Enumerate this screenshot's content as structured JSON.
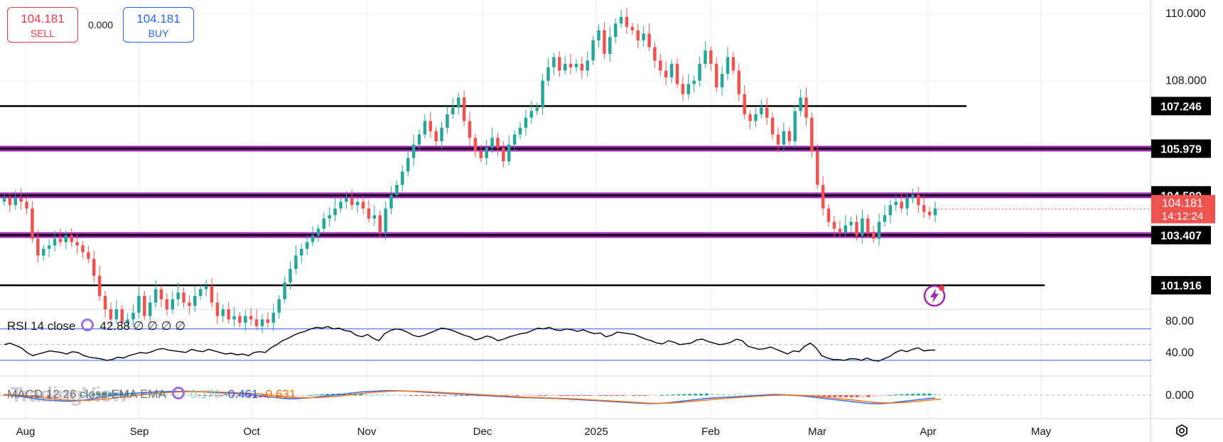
{
  "trade": {
    "sell_price": "104.181",
    "sell_label": "SELL",
    "spread": "0.000",
    "buy_price": "104.181",
    "buy_label": "BUY"
  },
  "indicators": {
    "rsi": {
      "label": "RSI 14 close",
      "value": "42.88",
      "extra": "∅ ∅ ∅ ∅"
    },
    "macd": {
      "label": "MACD 12 26 close EMA EMA",
      "hist": "0.170",
      "macd": "-0.461",
      "signal": "-0.631"
    }
  },
  "watermark": "TradingView",
  "colors": {
    "up": "#26a69a",
    "down": "#ef5350",
    "level": "#9c27b0",
    "rsi_band": "#2962ff",
    "macd_line": "#2962ff",
    "signal_line": "#ff6d00"
  },
  "icons": {
    "settings": "settings-icon",
    "alert": "lightning-alert-icon",
    "indicator_settings": "gear-icon"
  },
  "chart_data": {
    "type": "candlestick",
    "title": "",
    "price_axis_ticks": [
      "110.000",
      "108.000"
    ],
    "price_range": [
      101.2,
      110.4
    ],
    "time_axis_ticks": [
      "Aug",
      "Sep",
      "Oct",
      "Nov",
      "Dec",
      "2025",
      "Feb",
      "Mar",
      "Apr",
      "May"
    ],
    "levels": [
      {
        "value": 107.246,
        "label": "107.246",
        "style": "black"
      },
      {
        "value": 105.979,
        "label": "105.979",
        "style": "purple"
      },
      {
        "value": 104.59,
        "label": "104.590",
        "style": "purple"
      },
      {
        "value": 103.407,
        "label": "103.407",
        "style": "purple"
      },
      {
        "value": 101.916,
        "label": "101.916",
        "style": "black"
      }
    ],
    "current_price": {
      "value": 104.181,
      "label": "104.181",
      "countdown": "14:12:24"
    },
    "closes": [
      104.5,
      104.3,
      104.5,
      104.4,
      104.2,
      103.3,
      102.8,
      103.0,
      103.1,
      103.3,
      103.2,
      103.4,
      103.2,
      103.1,
      102.9,
      102.7,
      102.2,
      101.6,
      101.2,
      100.9,
      101.2,
      100.8,
      100.9,
      101.1,
      101.6,
      101.0,
      101.4,
      101.8,
      101.5,
      101.2,
      101.5,
      101.7,
      101.4,
      101.3,
      101.6,
      101.8,
      101.9,
      101.4,
      101.0,
      101.2,
      100.9,
      101.0,
      100.8,
      101.0,
      100.9,
      100.7,
      100.9,
      100.8,
      101.1,
      101.5,
      102.0,
      102.4,
      102.8,
      103.0,
      103.2,
      103.4,
      103.6,
      103.9,
      104.0,
      104.2,
      104.4,
      104.5,
      104.3,
      104.4,
      104.2,
      103.9,
      104.0,
      103.5,
      104.2,
      104.6,
      104.9,
      105.3,
      105.7,
      106.1,
      106.4,
      106.8,
      106.5,
      106.2,
      106.6,
      107.0,
      107.2,
      107.5,
      106.8,
      106.3,
      105.9,
      105.7,
      106.0,
      106.3,
      106.0,
      105.6,
      106.1,
      106.4,
      106.6,
      106.9,
      107.1,
      107.2,
      108.0,
      108.4,
      108.7,
      108.3,
      108.5,
      108.4,
      108.5,
      108.3,
      108.6,
      109.2,
      109.5,
      108.8,
      109.3,
      109.7,
      109.9,
      109.6,
      109.5,
      109.2,
      109.4,
      109.0,
      108.6,
      108.3,
      108.1,
      108.5,
      107.9,
      107.6,
      107.9,
      108.0,
      108.5,
      108.9,
      108.5,
      107.8,
      108.2,
      108.7,
      108.3,
      107.6,
      107.0,
      106.8,
      107.0,
      107.2,
      106.9,
      106.4,
      106.1,
      106.5,
      106.2,
      107.1,
      107.5,
      106.9,
      105.9,
      104.9,
      104.2,
      103.8,
      103.6,
      103.5,
      103.7,
      103.8,
      103.4,
      103.9,
      103.5,
      103.3,
      103.8,
      104.0,
      104.3,
      104.4,
      104.2,
      104.5,
      104.6,
      104.3,
      104.1,
      104.0,
      104.2
    ]
  },
  "rsi_data": {
    "levels": [
      70,
      50,
      30
    ],
    "ticks": [
      "80.00",
      "40.00"
    ],
    "values": [
      50,
      52,
      49,
      46,
      40,
      36,
      38,
      40,
      42,
      41,
      40,
      38,
      41,
      40,
      36,
      34,
      33,
      32,
      30,
      31,
      34,
      33,
      36,
      38,
      40,
      39,
      41,
      44,
      45,
      43,
      42,
      41,
      40,
      44,
      42,
      41,
      44,
      42,
      40,
      38,
      39,
      37,
      38,
      36,
      40,
      41,
      40,
      46,
      50,
      55,
      58,
      62,
      65,
      67,
      70,
      72,
      71,
      73,
      70,
      71,
      68,
      67,
      62,
      60,
      63,
      58,
      55,
      64,
      68,
      70,
      69,
      66,
      62,
      60,
      62,
      65,
      68,
      71,
      70,
      68,
      65,
      62,
      60,
      56,
      58,
      61,
      59,
      55,
      57,
      60,
      62,
      64,
      65,
      68,
      71,
      70,
      72,
      69,
      68,
      70,
      69,
      67,
      69,
      66,
      64,
      65,
      60,
      62,
      66,
      65,
      64,
      63,
      60,
      57,
      55,
      52,
      51,
      55,
      53,
      50,
      51,
      52,
      56,
      57,
      54,
      52,
      50,
      51,
      53,
      57,
      55,
      48,
      46,
      44,
      45,
      47,
      44,
      41,
      38,
      42,
      41,
      48,
      52,
      46,
      36,
      33,
      31,
      31,
      30,
      32,
      32,
      30,
      33,
      30,
      29,
      32,
      35,
      40,
      43,
      41,
      44,
      46,
      42,
      43,
      43
    ]
  },
  "macd_data": {
    "ticks": [
      "0.000"
    ],
    "macd": [
      0.05,
      0.0,
      -0.1,
      -0.2,
      -0.35,
      -0.5,
      -0.6,
      -0.7,
      -0.8,
      -0.85,
      -0.9,
      -0.95,
      -0.95,
      -0.9,
      -0.8,
      -0.7,
      -0.55,
      -0.4,
      -0.25,
      -0.1,
      0.0,
      0.1,
      0.2,
      0.3,
      0.35,
      0.4,
      0.45,
      0.5,
      0.55,
      0.55,
      0.6,
      0.6,
      0.6,
      0.62,
      0.6,
      0.55,
      0.5,
      0.45,
      0.4,
      0.35,
      0.35,
      0.3,
      0.25,
      0.2,
      0.1,
      0.0,
      -0.1,
      -0.2,
      -0.3,
      -0.4,
      -0.5,
      -0.55,
      -0.55,
      -0.5,
      -0.45,
      -0.4,
      -0.3,
      -0.2,
      -0.1,
      0.0,
      0.1,
      0.2,
      0.3,
      0.4,
      0.5,
      0.55,
      0.6,
      0.65,
      0.7,
      0.72,
      0.7,
      0.68,
      0.65,
      0.6,
      0.55,
      0.5,
      0.45,
      0.4,
      0.35,
      0.3,
      0.25,
      0.2,
      0.15,
      0.1,
      0.05,
      0.0,
      -0.05,
      -0.1,
      -0.15,
      -0.2,
      -0.25,
      -0.3,
      -0.35,
      -0.38,
      -0.4,
      -0.42,
      -0.45,
      -0.48,
      -0.5,
      -0.52,
      -0.55,
      -0.6,
      -0.65,
      -0.7,
      -0.75,
      -0.8,
      -0.85,
      -0.9,
      -0.95,
      -1.0,
      -1.05,
      -1.1,
      -1.15,
      -1.2,
      -1.25,
      -1.3,
      -1.32,
      -1.3,
      -1.25,
      -1.2,
      -1.1,
      -1.0,
      -0.9,
      -0.8,
      -0.7,
      -0.6,
      -0.5,
      -0.45,
      -0.4,
      -0.35,
      -0.3,
      -0.25,
      -0.2,
      -0.15,
      -0.1,
      -0.05,
      0.0,
      0.05,
      0.1,
      0.1,
      0.05,
      0.0,
      -0.05,
      -0.1,
      -0.2,
      -0.3,
      -0.4,
      -0.5,
      -0.6,
      -0.7,
      -0.8,
      -0.9,
      -1.0,
      -1.1,
      -1.2,
      -1.3,
      -1.35,
      -1.35,
      -1.3,
      -1.2,
      -1.1,
      -1.0,
      -0.9,
      -0.8,
      -0.7,
      -0.6,
      -0.5,
      -0.46
    ],
    "signal": [
      0.1,
      0.08,
      0.05,
      0.0,
      -0.1,
      -0.2,
      -0.3,
      -0.4,
      -0.5,
      -0.6,
      -0.7,
      -0.75,
      -0.8,
      -0.82,
      -0.82,
      -0.8,
      -0.75,
      -0.7,
      -0.6,
      -0.5,
      -0.4,
      -0.3,
      -0.2,
      -0.1,
      0.0,
      0.1,
      0.2,
      0.3,
      0.35,
      0.4,
      0.45,
      0.5,
      0.52,
      0.55,
      0.56,
      0.56,
      0.55,
      0.53,
      0.5,
      0.47,
      0.44,
      0.41,
      0.38,
      0.35,
      0.3,
      0.25,
      0.2,
      0.1,
      0.0,
      -0.1,
      -0.2,
      -0.3,
      -0.35,
      -0.4,
      -0.4,
      -0.4,
      -0.38,
      -0.35,
      -0.3,
      -0.22,
      -0.15,
      -0.05,
      0.05,
      0.15,
      0.25,
      0.35,
      0.42,
      0.5,
      0.56,
      0.6,
      0.63,
      0.65,
      0.65,
      0.63,
      0.6,
      0.57,
      0.53,
      0.49,
      0.45,
      0.4,
      0.35,
      0.3,
      0.25,
      0.2,
      0.15,
      0.1,
      0.05,
      0.0,
      -0.05,
      -0.1,
      -0.15,
      -0.2,
      -0.25,
      -0.3,
      -0.33,
      -0.36,
      -0.39,
      -0.42,
      -0.45,
      -0.48,
      -0.5,
      -0.53,
      -0.57,
      -0.61,
      -0.66,
      -0.71,
      -0.76,
      -0.81,
      -0.86,
      -0.91,
      -0.96,
      -1.01,
      -1.06,
      -1.11,
      -1.16,
      -1.21,
      -1.25,
      -1.27,
      -1.27,
      -1.25,
      -1.21,
      -1.15,
      -1.08,
      -1.0,
      -0.92,
      -0.84,
      -0.76,
      -0.68,
      -0.6,
      -0.53,
      -0.47,
      -0.41,
      -0.35,
      -0.29,
      -0.23,
      -0.17,
      -0.12,
      -0.07,
      -0.03,
      0.0,
      0.02,
      0.02,
      0.0,
      -0.03,
      -0.08,
      -0.14,
      -0.21,
      -0.29,
      -0.37,
      -0.46,
      -0.55,
      -0.64,
      -0.73,
      -0.83,
      -0.93,
      -1.03,
      -1.11,
      -1.17,
      -1.21,
      -1.22,
      -1.2,
      -1.16,
      -1.1,
      -1.02,
      -0.94,
      -0.85,
      -0.76,
      -0.68,
      -0.63
    ]
  }
}
